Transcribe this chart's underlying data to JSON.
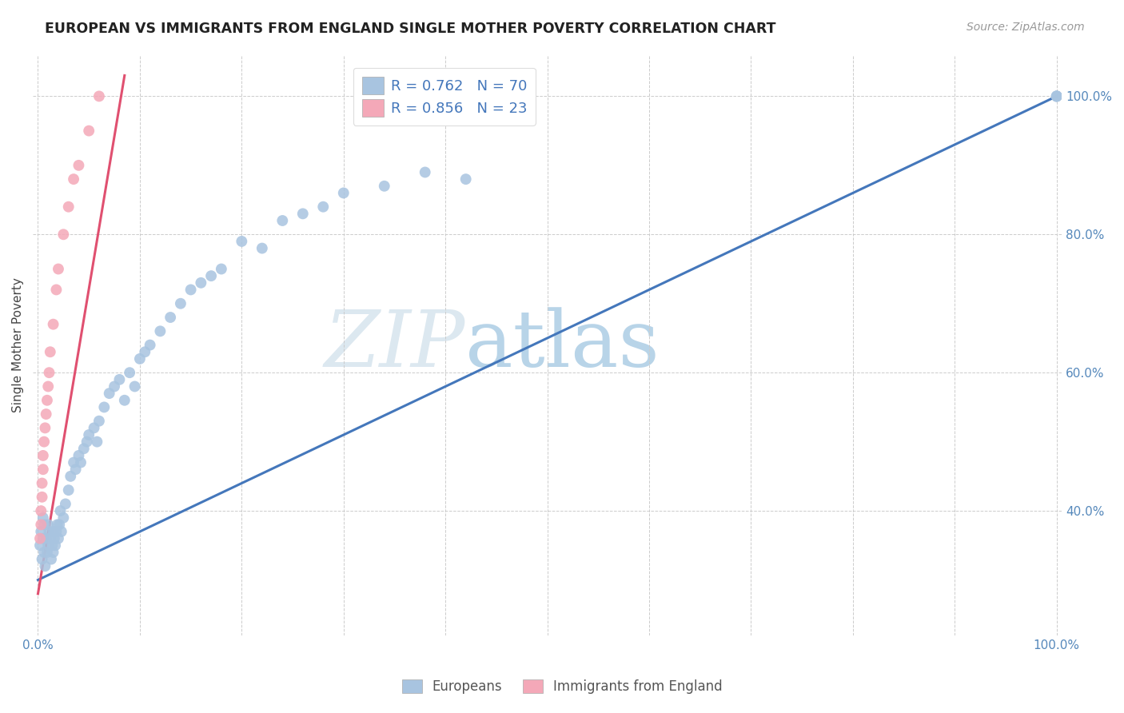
{
  "title": "EUROPEAN VS IMMIGRANTS FROM ENGLAND SINGLE MOTHER POVERTY CORRELATION CHART",
  "source": "Source: ZipAtlas.com",
  "ylabel": "Single Mother Poverty",
  "background_color": "#ffffff",
  "watermark_zip": "ZIP",
  "watermark_atlas": "atlas",
  "legend_blue_label": "R = 0.762   N = 70",
  "legend_pink_label": "R = 0.856   N = 23",
  "blue_scatter_color": "#a8c4e0",
  "pink_scatter_color": "#f4a8b8",
  "blue_line_color": "#4477bb",
  "pink_line_color": "#e05070",
  "blue_trendline": [
    0.0,
    0.0,
    1.0,
    1.0
  ],
  "pink_trendline_x0": 0.0,
  "pink_trendline_y0": 0.28,
  "pink_trendline_x1": 0.085,
  "pink_trendline_y1": 1.03,
  "xlim": [
    -0.005,
    1.005
  ],
  "ylim": [
    0.22,
    1.06
  ],
  "xtick_positions": [
    0,
    0.1,
    0.2,
    0.3,
    0.4,
    0.5,
    0.6,
    0.7,
    0.8,
    0.9,
    1.0
  ],
  "ytick_positions": [
    0.4,
    0.6,
    0.8,
    1.0
  ],
  "ytick_labels": [
    "40.0%",
    "60.0%",
    "80.0%",
    "100.0%"
  ],
  "europeans_x": [
    0.002,
    0.003,
    0.004,
    0.005,
    0.005,
    0.006,
    0.006,
    0.007,
    0.008,
    0.009,
    0.01,
    0.01,
    0.011,
    0.012,
    0.013,
    0.014,
    0.015,
    0.015,
    0.016,
    0.017,
    0.018,
    0.019,
    0.02,
    0.021,
    0.022,
    0.023,
    0.025,
    0.027,
    0.03,
    0.032,
    0.035,
    0.037,
    0.04,
    0.042,
    0.045,
    0.048,
    0.05,
    0.055,
    0.058,
    0.06,
    0.065,
    0.07,
    0.075,
    0.08,
    0.085,
    0.09,
    0.095,
    0.1,
    0.105,
    0.11,
    0.12,
    0.13,
    0.14,
    0.15,
    0.16,
    0.17,
    0.18,
    0.2,
    0.22,
    0.24,
    0.26,
    0.28,
    0.3,
    0.34,
    0.38,
    0.42,
    1.0,
    1.0,
    1.0,
    1.0
  ],
  "europeans_y": [
    0.35,
    0.37,
    0.33,
    0.36,
    0.39,
    0.34,
    0.38,
    0.32,
    0.36,
    0.34,
    0.35,
    0.38,
    0.37,
    0.36,
    0.33,
    0.35,
    0.34,
    0.37,
    0.36,
    0.35,
    0.37,
    0.38,
    0.36,
    0.38,
    0.4,
    0.37,
    0.39,
    0.41,
    0.43,
    0.45,
    0.47,
    0.46,
    0.48,
    0.47,
    0.49,
    0.5,
    0.51,
    0.52,
    0.5,
    0.53,
    0.55,
    0.57,
    0.58,
    0.59,
    0.56,
    0.6,
    0.58,
    0.62,
    0.63,
    0.64,
    0.66,
    0.68,
    0.7,
    0.72,
    0.73,
    0.74,
    0.75,
    0.79,
    0.78,
    0.82,
    0.83,
    0.84,
    0.86,
    0.87,
    0.89,
    0.88,
    1.0,
    1.0,
    1.0,
    1.0
  ],
  "england_x": [
    0.002,
    0.003,
    0.003,
    0.004,
    0.004,
    0.005,
    0.005,
    0.006,
    0.007,
    0.008,
    0.009,
    0.01,
    0.011,
    0.012,
    0.015,
    0.018,
    0.02,
    0.025,
    0.03,
    0.035,
    0.04,
    0.05,
    0.06
  ],
  "england_y": [
    0.36,
    0.38,
    0.4,
    0.42,
    0.44,
    0.46,
    0.48,
    0.5,
    0.52,
    0.54,
    0.56,
    0.58,
    0.6,
    0.63,
    0.67,
    0.72,
    0.75,
    0.8,
    0.84,
    0.88,
    0.9,
    0.95,
    1.0
  ]
}
